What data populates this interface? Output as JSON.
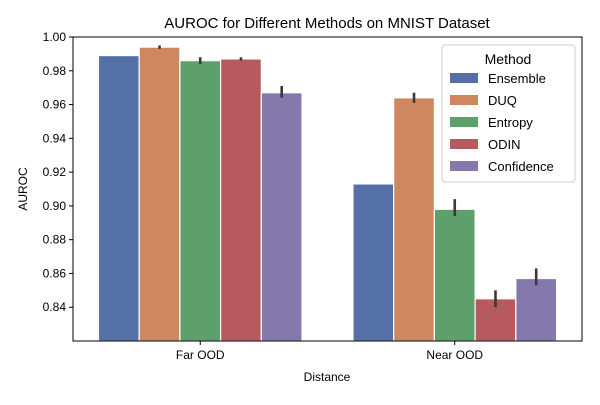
{
  "chart_data": {
    "type": "bar",
    "title": "AUROC for Different Methods on MNIST Dataset",
    "xlabel": "Distance",
    "ylabel": "AUROC",
    "ylim": [
      0.82,
      1.0
    ],
    "yticks": [
      "0.84",
      "0.86",
      "0.88",
      "0.90",
      "0.92",
      "0.94",
      "0.96",
      "0.98",
      "1.00"
    ],
    "grid": false,
    "categories": [
      "Far OOD",
      "Near OOD"
    ],
    "legend": {
      "title": "Method",
      "placement": "top-right"
    },
    "series": [
      {
        "name": "Ensemble",
        "color": "#5470a6",
        "values": [
          0.989,
          0.913
        ],
        "error_low": [
          null,
          null
        ],
        "error_high": [
          null,
          null
        ]
      },
      {
        "name": "DUQ",
        "color": "#cf8760",
        "values": [
          0.994,
          0.964
        ],
        "error_low": [
          0.993,
          0.961
        ],
        "error_high": [
          0.995,
          0.967
        ]
      },
      {
        "name": "Entropy",
        "color": "#5ea06b",
        "values": [
          0.986,
          0.898
        ],
        "error_low": [
          0.984,
          0.894
        ],
        "error_high": [
          0.988,
          0.904
        ]
      },
      {
        "name": "ODIN",
        "color": "#b65a5e",
        "values": [
          0.987,
          0.845
        ],
        "error_low": [
          0.986,
          0.84
        ],
        "error_high": [
          0.988,
          0.85
        ]
      },
      {
        "name": "Confidence",
        "color": "#8578ad",
        "values": [
          0.967,
          0.857
        ],
        "error_low": [
          0.964,
          0.853
        ],
        "error_high": [
          0.971,
          0.863
        ]
      }
    ]
  }
}
